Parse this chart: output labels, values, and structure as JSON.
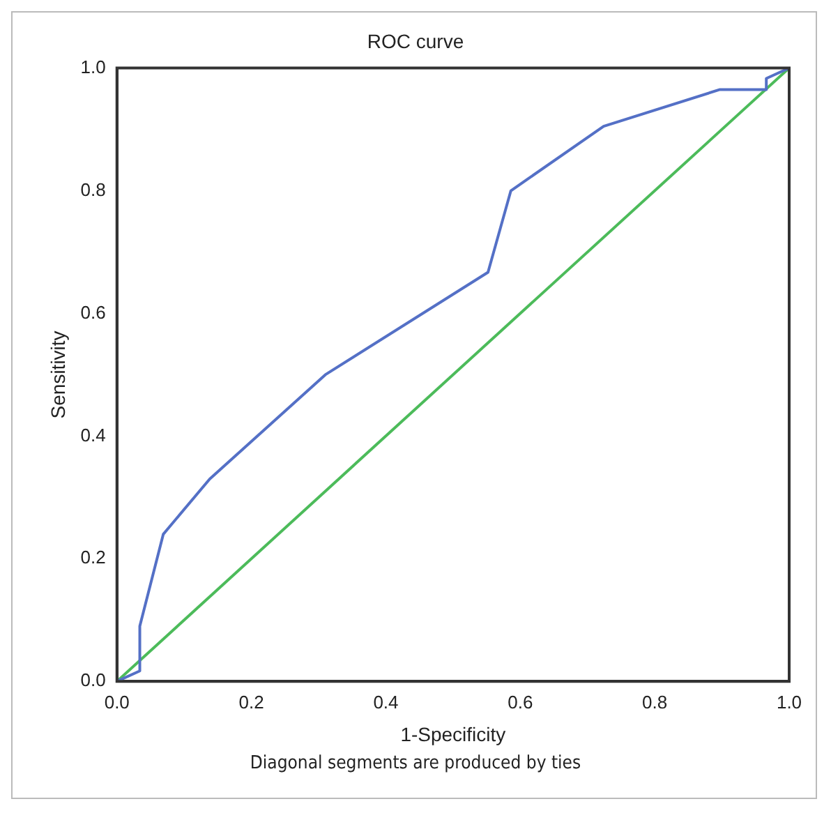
{
  "chart_data": {
    "type": "line",
    "title": "ROC curve",
    "xlabel": "1-Specificity",
    "ylabel": "Sensitivity",
    "annotations": [
      "Diagonal segments are produced by ties"
    ],
    "xlim": [
      0,
      1
    ],
    "ylim": [
      0,
      1
    ],
    "xticks": [
      {
        "value": 0,
        "label": "0.0"
      },
      {
        "value": 0.2,
        "label": "0.2"
      },
      {
        "value": 0.4,
        "label": "0.4"
      },
      {
        "value": 0.6,
        "label": "0.6"
      },
      {
        "value": 0.8,
        "label": "0.8"
      },
      {
        "value": 1,
        "label": "1.0"
      }
    ],
    "yticks": [
      {
        "value": 0,
        "label": "0.0"
      },
      {
        "value": 0.2,
        "label": "0.2"
      },
      {
        "value": 0.4,
        "label": "0.4"
      },
      {
        "value": 0.6,
        "label": "0.6"
      },
      {
        "value": 0.8,
        "label": "0.8"
      },
      {
        "value": 1,
        "label": "1.0"
      }
    ],
    "grid": false,
    "legend": false,
    "marker": "none",
    "line_style": "solid",
    "series": [
      {
        "color": "#5470c6",
        "x": [
          0,
          0.034,
          0.034,
          0.069,
          0.138,
          0.31,
          0.552,
          0.586,
          0.724,
          0.897,
          0.966,
          0.966,
          1
        ],
        "values": [
          0,
          0.017,
          0.09,
          0.24,
          0.33,
          0.5,
          0.667,
          0.8,
          0.905,
          0.965,
          0.965,
          0.983,
          1
        ]
      },
      {
        "color": "#4cbb5a",
        "x": [
          0,
          1
        ],
        "values": [
          0,
          1
        ]
      }
    ]
  }
}
